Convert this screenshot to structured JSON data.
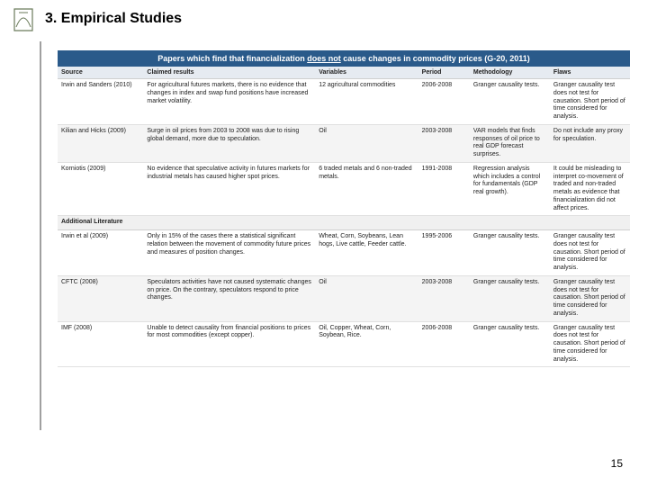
{
  "header": {
    "title": "3. Empirical Studies"
  },
  "table": {
    "caption_prefix": "Papers which find that financialization ",
    "caption_underline": "does not",
    "caption_suffix": " cause changes in commodity prices (G-20, 2011)",
    "columns": [
      "Source",
      "Claimed results",
      "Variables",
      "Period",
      "Methodology",
      "Flaws"
    ],
    "rows": [
      {
        "alt": false,
        "cells": [
          "Irwin and Sanders (2010)",
          "For agricultural futures markets, there is no evidence that changes in index and swap fund positions have increased market volatility.",
          "12 agricultural commodities",
          "2006-2008",
          "Granger causality tests.",
          "Granger causality test does not test for causation. Short period of time considered for analysis."
        ]
      },
      {
        "alt": true,
        "cells": [
          "Kilian and Hicks (2009)",
          "Surge in oil prices from 2003 to 2008 was due to rising global demand, more due to speculation.",
          "Oil",
          "2003-2008",
          "VAR models that finds responses of oil price to real GDP forecast surprises.",
          "Do not include any proxy for speculation."
        ]
      },
      {
        "alt": false,
        "cells": [
          "Korniotis (2009)",
          "No evidence that speculative activity in futures markets for industrial metals has caused higher spot prices.",
          "6 traded metals and 6 non-traded metals.",
          "1991-2008",
          "Regression analysis which includes a control for fundamentals (GDP real growth).",
          "It could be misleading to interpret co-movement of traded and non-traded metals as evidence that financialization did not affect prices."
        ]
      }
    ],
    "section_label": "Additional Literature",
    "rows2": [
      {
        "alt": false,
        "cells": [
          "Irwin et al (2009)",
          "Only in 15% of the cases there a statistical significant relation between the movement of commodity future prices and measures of position changes.",
          "Wheat, Corn, Soybeans, Lean hogs, Live cattle, Feeder cattle.",
          "1995-2006",
          "Granger causality tests.",
          "Granger causality test does not test for causation. Short period of time considered for analysis."
        ]
      },
      {
        "alt": true,
        "cells": [
          "CFTC (2008)",
          "Speculators activities have not caused systematic changes on price. On the contrary, speculators respond to price changes.",
          "Oil",
          "2003-2008",
          "Granger causality tests.",
          "Granger causality test does not test for causation. Short period of time considered for analysis."
        ]
      },
      {
        "alt": false,
        "cells": [
          "IMF (2008)",
          "Unable to detect causality from financial positions to prices for most commodities (except copper).",
          "Oil, Copper, Wheat, Corn, Soybean, Rice.",
          "2006-2008",
          "Granger causality tests.",
          "Granger causality test does not test for causation. Short period of time considered for analysis."
        ]
      }
    ]
  },
  "pagenum": "15",
  "colors": {
    "caption_bg": "#2a5a8a",
    "header_bg": "#e6ebf1",
    "alt_bg": "#f4f4f4",
    "border": "#cfcfcf",
    "vline": "#a0a0a0"
  }
}
